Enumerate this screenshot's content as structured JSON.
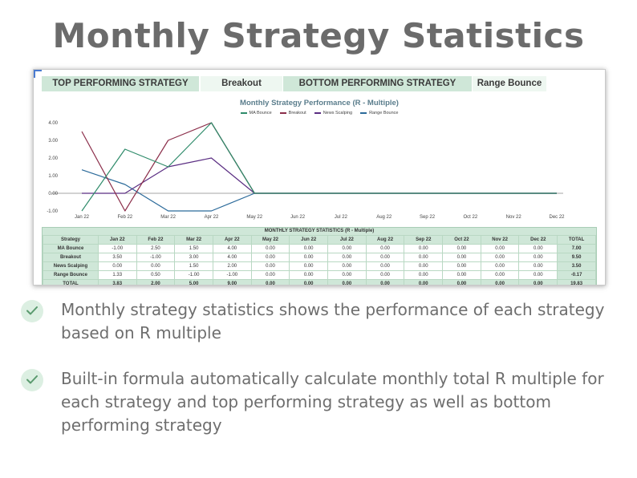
{
  "page": {
    "title": "Monthly Strategy Statistics",
    "bullets": [
      "Monthly strategy statistics shows the performance of each strategy based on R multiple",
      "Built-in formula automatically calculate monthly total R multiple for each strategy and top performing strategy as well as bottom performing strategy"
    ]
  },
  "header": {
    "top_label": "TOP PERFORMING STRATEGY",
    "top_value": "Breakout",
    "bottom_label": "BOTTOM PERFORMING STRATEGY",
    "bottom_value": "Range Bounce"
  },
  "colors": {
    "header_label_bg": "#cfe7d8",
    "header_value_bg": "#eef7f1",
    "check_bg": "#dcefe2",
    "check_mark": "#5a9a6e"
  },
  "icons": {
    "bullet": "check-icon"
  },
  "chart_data": {
    "type": "line",
    "title": "Monthly Strategy Performance (R - Multiple)",
    "categories": [
      "Jan 22",
      "Feb 22",
      "Mar 22",
      "Apr 22",
      "May 22",
      "Jun 22",
      "Jul 22",
      "Aug 22",
      "Sep 22",
      "Oct 22",
      "Nov 22",
      "Dec 22"
    ],
    "ylim": [
      -1,
      4
    ],
    "yticks": [
      "4.00",
      "3.00",
      "2.00",
      "1.00",
      "0.00",
      "-1.00"
    ],
    "grid": false,
    "legend_position": "top",
    "series": [
      {
        "name": "MA Bounce",
        "color": "#2e8b6a",
        "values": [
          -1.0,
          2.5,
          1.5,
          4.0,
          0,
          0,
          0,
          0,
          0,
          0,
          0,
          0
        ]
      },
      {
        "name": "Breakout",
        "color": "#8b2e4a",
        "values": [
          3.5,
          -1.0,
          3.0,
          4.0,
          0,
          0,
          0,
          0,
          0,
          0,
          0,
          0
        ]
      },
      {
        "name": "News Scalping",
        "color": "#5a2d82",
        "values": [
          0,
          0,
          1.5,
          2.0,
          0,
          0,
          0,
          0,
          0,
          0,
          0,
          0
        ]
      },
      {
        "name": "Range Bounce",
        "color": "#2b6a9a",
        "values": [
          1.33,
          0.5,
          -1.0,
          -1.0,
          0,
          0,
          0,
          0,
          0,
          0,
          0,
          0
        ]
      }
    ]
  },
  "stats": {
    "title": "MONTHLY STRATEGY STATISTICS (R - Multiple)",
    "columns": [
      "Strategy",
      "Jan 22",
      "Feb 22",
      "Mar 22",
      "Apr 22",
      "May 22",
      "Jun 22",
      "Jul 22",
      "Aug 22",
      "Sep 22",
      "Oct 22",
      "Nov 22",
      "Dec 22",
      "TOTAL"
    ],
    "rows": [
      [
        "MA Bounce",
        "-1.00",
        "2.50",
        "1.50",
        "4.00",
        "0.00",
        "0.00",
        "0.00",
        "0.00",
        "0.00",
        "0.00",
        "0.00",
        "0.00",
        "7.00"
      ],
      [
        "Breakout",
        "3.50",
        "-1.00",
        "3.00",
        "4.00",
        "0.00",
        "0.00",
        "0.00",
        "0.00",
        "0.00",
        "0.00",
        "0.00",
        "0.00",
        "9.50"
      ],
      [
        "News Scalping",
        "0.00",
        "0.00",
        "1.50",
        "2.00",
        "0.00",
        "0.00",
        "0.00",
        "0.00",
        "0.00",
        "0.00",
        "0.00",
        "0.00",
        "3.50"
      ],
      [
        "Range Bounce",
        "1.33",
        "0.50",
        "-1.00",
        "-1.00",
        "0.00",
        "0.00",
        "0.00",
        "0.00",
        "0.00",
        "0.00",
        "0.00",
        "0.00",
        "-0.17"
      ]
    ],
    "total_row": [
      "TOTAL",
      "3.83",
      "2.00",
      "5.00",
      "9.00",
      "0.00",
      "0.00",
      "0.00",
      "0.00",
      "0.00",
      "0.00",
      "0.00",
      "0.00",
      "19.83"
    ]
  }
}
